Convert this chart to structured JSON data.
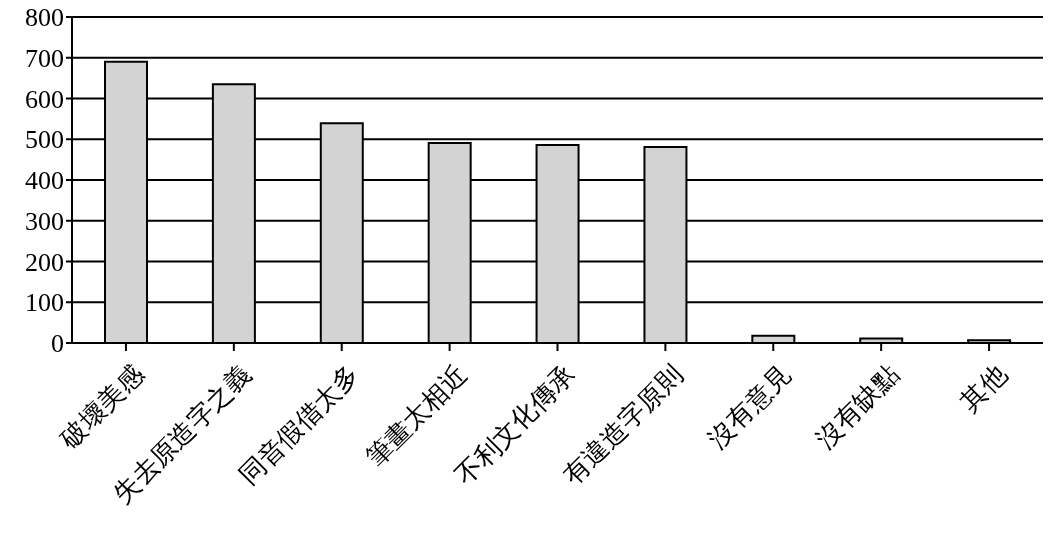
{
  "chart_data": {
    "type": "bar",
    "categories": [
      "破壞美感",
      "失去原造字之義",
      "同音假借太多",
      "筆畫太相近",
      "不利文化傳承",
      "有違造字原則",
      "沒有意見",
      "沒有缺點",
      "其他"
    ],
    "values": [
      690,
      635,
      539,
      491,
      486,
      481,
      18,
      11,
      7
    ],
    "color": "#d3d3d3",
    "ylim": [
      0,
      800
    ],
    "yticks": [
      0,
      100,
      200,
      300,
      400,
      500,
      600,
      700,
      800
    ],
    "grid": "y"
  }
}
